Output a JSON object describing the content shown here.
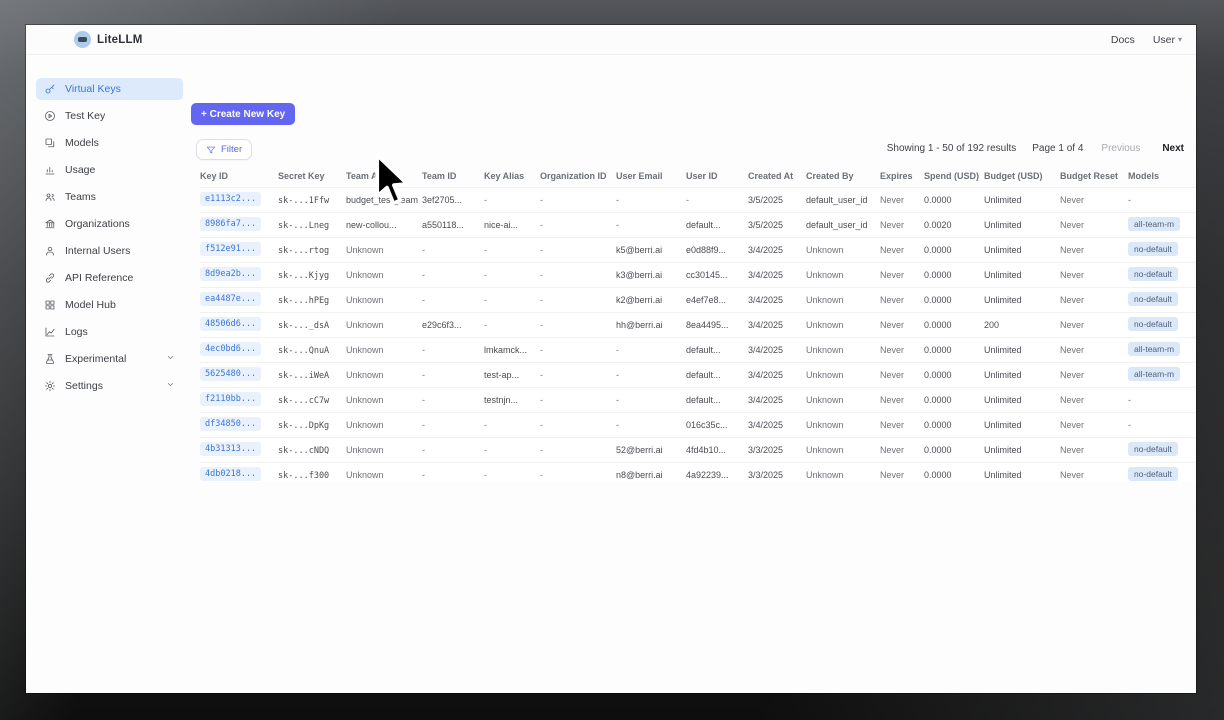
{
  "header": {
    "brand": "LiteLLM",
    "docs_link": "Docs",
    "user_label": "User"
  },
  "sidebar": {
    "items": [
      {
        "label": "Virtual Keys",
        "icon": "key-icon",
        "active": true,
        "chevron": false
      },
      {
        "label": "Test Key",
        "icon": "play-circle-icon",
        "active": false,
        "chevron": false
      },
      {
        "label": "Models",
        "icon": "blocks-icon",
        "active": false,
        "chevron": false
      },
      {
        "label": "Usage",
        "icon": "bar-chart-icon",
        "active": false,
        "chevron": false
      },
      {
        "label": "Teams",
        "icon": "team-icon",
        "active": false,
        "chevron": false
      },
      {
        "label": "Organizations",
        "icon": "bank-icon",
        "active": false,
        "chevron": false
      },
      {
        "label": "Internal Users",
        "icon": "user-icon",
        "active": false,
        "chevron": false
      },
      {
        "label": "API Reference",
        "icon": "link-icon",
        "active": false,
        "chevron": false
      },
      {
        "label": "Model Hub",
        "icon": "grid-icon",
        "active": false,
        "chevron": false
      },
      {
        "label": "Logs",
        "icon": "line-chart-icon",
        "active": false,
        "chevron": false
      },
      {
        "label": "Experimental",
        "icon": "flask-icon",
        "active": false,
        "chevron": true
      },
      {
        "label": "Settings",
        "icon": "gear-icon",
        "active": false,
        "chevron": true
      }
    ]
  },
  "toolbar": {
    "create_button": "+ Create New Key",
    "filter_button": "Filter"
  },
  "pagination": {
    "showing": "Showing 1 - 50 of 192 results",
    "page": "Page 1 of 4",
    "previous": "Previous",
    "next": "Next"
  },
  "table": {
    "columns": [
      "Key ID",
      "Secret Key",
      "Team Alias",
      "Team ID",
      "Key Alias",
      "Organization ID",
      "User Email",
      "User ID",
      "Created At",
      "Created By",
      "Expires",
      "Spend (USD)",
      "Budget (USD)",
      "Budget Reset",
      "Models"
    ],
    "rows": [
      {
        "key_id": "e1113c2...",
        "secret_key": "sk-...1Ffw",
        "team_alias": "budget_test_team",
        "team_id": "3ef2705...",
        "key_alias": "-",
        "org_id": "-",
        "user_email": "-",
        "user_id": "-",
        "created_at": "3/5/2025",
        "created_by": "default_user_id",
        "expires": "Never",
        "spend": "0.0000",
        "budget": "Unlimited",
        "budget_reset": "Never",
        "models": "-"
      },
      {
        "key_id": "8986fa7...",
        "secret_key": "sk-...Lneg",
        "team_alias": "new-collou...",
        "team_id": "a550118...",
        "key_alias": "nice-ai...",
        "org_id": "-",
        "user_email": "-",
        "user_id": "default...",
        "created_at": "3/5/2025",
        "created_by": "default_user_id",
        "expires": "Never",
        "spend": "0.0020",
        "budget": "Unlimited",
        "budget_reset": "Never",
        "models": "all-team-m"
      },
      {
        "key_id": "f512e91...",
        "secret_key": "sk-...rtog",
        "team_alias": "Unknown",
        "team_id": "-",
        "key_alias": "-",
        "org_id": "-",
        "user_email": "k5@berri.ai",
        "user_id": "e0d88f9...",
        "created_at": "3/4/2025",
        "created_by": "Unknown",
        "expires": "Never",
        "spend": "0.0000",
        "budget": "Unlimited",
        "budget_reset": "Never",
        "models": "no-default"
      },
      {
        "key_id": "8d9ea2b...",
        "secret_key": "sk-...Kjyg",
        "team_alias": "Unknown",
        "team_id": "-",
        "key_alias": "-",
        "org_id": "-",
        "user_email": "k3@berri.ai",
        "user_id": "cc30145...",
        "created_at": "3/4/2025",
        "created_by": "Unknown",
        "expires": "Never",
        "spend": "0.0000",
        "budget": "Unlimited",
        "budget_reset": "Never",
        "models": "no-default"
      },
      {
        "key_id": "ea4487e...",
        "secret_key": "sk-...hPEg",
        "team_alias": "Unknown",
        "team_id": "-",
        "key_alias": "-",
        "org_id": "-",
        "user_email": "k2@berri.ai",
        "user_id": "e4ef7e8...",
        "created_at": "3/4/2025",
        "created_by": "Unknown",
        "expires": "Never",
        "spend": "0.0000",
        "budget": "Unlimited",
        "budget_reset": "Never",
        "models": "no-default"
      },
      {
        "key_id": "48506d6...",
        "secret_key": "sk-..._dsA",
        "team_alias": "Unknown",
        "team_id": "e29c6f3...",
        "key_alias": "-",
        "org_id": "-",
        "user_email": "hh@berri.ai",
        "user_id": "8ea4495...",
        "created_at": "3/4/2025",
        "created_by": "Unknown",
        "expires": "Never",
        "spend": "0.0000",
        "budget": "200",
        "budget_reset": "Never",
        "models": "no-default"
      },
      {
        "key_id": "4ec0bd6...",
        "secret_key": "sk-...QnuA",
        "team_alias": "Unknown",
        "team_id": "-",
        "key_alias": "lmkamck...",
        "org_id": "-",
        "user_email": "-",
        "user_id": "default...",
        "created_at": "3/4/2025",
        "created_by": "Unknown",
        "expires": "Never",
        "spend": "0.0000",
        "budget": "Unlimited",
        "budget_reset": "Never",
        "models": "all-team-m"
      },
      {
        "key_id": "5625480...",
        "secret_key": "sk-...iWeA",
        "team_alias": "Unknown",
        "team_id": "-",
        "key_alias": "test-ap...",
        "org_id": "-",
        "user_email": "-",
        "user_id": "default...",
        "created_at": "3/4/2025",
        "created_by": "Unknown",
        "expires": "Never",
        "spend": "0.0000",
        "budget": "Unlimited",
        "budget_reset": "Never",
        "models": "all-team-m"
      },
      {
        "key_id": "f2110bb...",
        "secret_key": "sk-...cC7w",
        "team_alias": "Unknown",
        "team_id": "-",
        "key_alias": "testnjn...",
        "org_id": "-",
        "user_email": "-",
        "user_id": "default...",
        "created_at": "3/4/2025",
        "created_by": "Unknown",
        "expires": "Never",
        "spend": "0.0000",
        "budget": "Unlimited",
        "budget_reset": "Never",
        "models": "-"
      },
      {
        "key_id": "df34850...",
        "secret_key": "sk-...DpKg",
        "team_alias": "Unknown",
        "team_id": "-",
        "key_alias": "-",
        "org_id": "-",
        "user_email": "-",
        "user_id": "016c35c...",
        "created_at": "3/4/2025",
        "created_by": "Unknown",
        "expires": "Never",
        "spend": "0.0000",
        "budget": "Unlimited",
        "budget_reset": "Never",
        "models": "-"
      },
      {
        "key_id": "4b31313...",
        "secret_key": "sk-...cNDQ",
        "team_alias": "Unknown",
        "team_id": "-",
        "key_alias": "-",
        "org_id": "-",
        "user_email": "52@berri.ai",
        "user_id": "4fd4b10...",
        "created_at": "3/3/2025",
        "created_by": "Unknown",
        "expires": "Never",
        "spend": "0.0000",
        "budget": "Unlimited",
        "budget_reset": "Never",
        "models": "no-default"
      },
      {
        "key_id": "4db0218...",
        "secret_key": "sk-...f300",
        "team_alias": "Unknown",
        "team_id": "-",
        "key_alias": "-",
        "org_id": "-",
        "user_email": "n8@berri.ai",
        "user_id": "4a92239...",
        "created_at": "3/3/2025",
        "created_by": "Unknown",
        "expires": "Never",
        "spend": "0.0000",
        "budget": "Unlimited",
        "budget_reset": "Never",
        "models": "no-default"
      }
    ]
  },
  "colors": {
    "accent": "#6366f1",
    "active_nav_bg": "#dceafb",
    "active_nav_text": "#3d76d8",
    "key_pill_bg": "#e8f1fc",
    "key_pill_text": "#3d76d8",
    "model_badge_bg": "#dbe8f8"
  }
}
